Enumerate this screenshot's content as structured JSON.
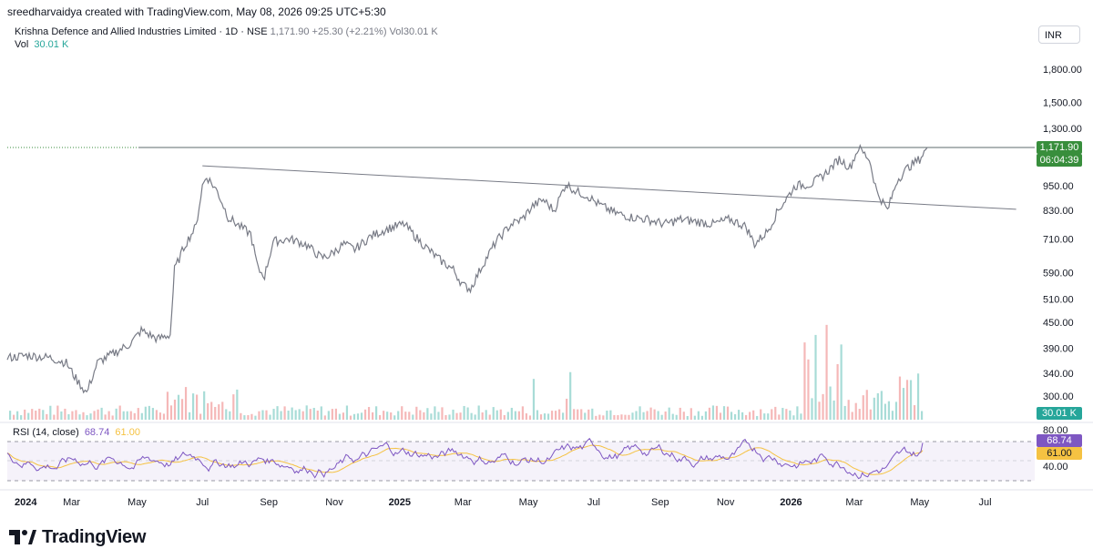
{
  "caption": "sreedharvaidya created with TradingView.com, May 08, 2026 09:25 UTC+5:30",
  "legend": {
    "symbol": "Krishna Defence and Allied Industries Limited · 1D · NSE",
    "last": "1,171.90",
    "change": "+25.30 (+2.21%)",
    "vol_inline": "Vol30.01 K",
    "vol_label": "Vol",
    "vol_value": "30.01 K"
  },
  "currency_button": "INR",
  "rsi_legend": {
    "label": "RSI (14, close)",
    "rsi": "68.74",
    "ma": "61.00"
  },
  "price_axis_labels": [
    "1,800.00",
    "1,500.00",
    "1,300.00",
    "950.00",
    "830.00",
    "710.00",
    "590.00",
    "510.00",
    "450.00",
    "390.00",
    "340.00",
    "300.00"
  ],
  "price_tag": {
    "price": "1,171.90",
    "countdown": "06:04:39"
  },
  "volume_tag": "30.01 K",
  "rsi_axis_labels": [
    "80.00",
    "40.00"
  ],
  "rsi_tags": {
    "rsi": "68.74",
    "ma": "61.00"
  },
  "time_axis_labels": [
    "2024",
    "Mar",
    "May",
    "Jul",
    "Sep",
    "Nov",
    "2025",
    "Mar",
    "May",
    "Jul",
    "Sep",
    "Nov",
    "2026",
    "Mar",
    "May",
    "Jul"
  ],
  "brand": "TradingView",
  "colors": {
    "price_line": "#787b86",
    "last_tag": "#388e3c",
    "rsi_line": "#7e57c2",
    "rsi_ma": "#f5c242",
    "vol_up": "#a8dcd7",
    "vol_down": "#f5b8b8",
    "vol_tag": "#26a69a"
  },
  "chart_data": [
    {
      "type": "line",
      "scale": "log",
      "title": "Krishna Defence and Allied Industries Limited · 1D · NSE",
      "x_range": [
        "2024-01-01",
        "2026-08-01"
      ],
      "ylim": [
        280,
        2000
      ],
      "series": [
        {
          "x": [
            "2024-01-01",
            "2024-01-20",
            "2024-02-10",
            "2024-02-25",
            "2024-03-05",
            "2024-03-15",
            "2024-03-25",
            "2024-04-10",
            "2024-04-25",
            "2024-05-05",
            "2024-05-20",
            "2024-06-01",
            "2024-06-05",
            "2024-06-15",
            "2024-06-25",
            "2024-07-01",
            "2024-07-05",
            "2024-07-15",
            "2024-07-25",
            "2024-08-05",
            "2024-08-15",
            "2024-08-22",
            "2024-08-28",
            "2024-09-05",
            "2024-09-20",
            "2024-10-05",
            "2024-10-20",
            "2024-10-28",
            "2024-11-10",
            "2024-11-20",
            "2024-12-05",
            "2024-12-20",
            "2025-01-05",
            "2025-01-20",
            "2025-02-05",
            "2025-02-20",
            "2025-03-01",
            "2025-03-08",
            "2025-03-20",
            "2025-04-01",
            "2025-04-15",
            "2025-04-25",
            "2025-05-05",
            "2025-05-15",
            "2025-05-25",
            "2025-06-05",
            "2025-06-15",
            "2025-06-25",
            "2025-07-05",
            "2025-07-20",
            "2025-08-05",
            "2025-08-20",
            "2025-09-05",
            "2025-09-20",
            "2025-10-05",
            "2025-10-20",
            "2025-11-05",
            "2025-11-20",
            "2025-11-28",
            "2025-12-10",
            "2025-12-20",
            "2026-01-05",
            "2026-01-20",
            "2026-02-01",
            "2026-02-15",
            "2026-02-25",
            "2026-03-05",
            "2026-03-15",
            "2026-03-22",
            "2026-04-01",
            "2026-04-10",
            "2026-04-20",
            "2026-05-01",
            "2026-05-08"
          ],
          "values": [
            370,
            375,
            370,
            360,
            330,
            305,
            360,
            380,
            400,
            430,
            410,
            420,
            600,
            690,
            760,
            950,
            1000,
            920,
            800,
            760,
            730,
            600,
            580,
            700,
            710,
            690,
            640,
            650,
            690,
            670,
            720,
            750,
            770,
            700,
            640,
            600,
            550,
            540,
            620,
            700,
            770,
            790,
            850,
            880,
            830,
            960,
            920,
            900,
            860,
            820,
            800,
            790,
            770,
            790,
            780,
            770,
            790,
            760,
            690,
            740,
            830,
            950,
            960,
            1010,
            1100,
            1050,
            1170,
            1100,
            920,
            830,
            980,
            1050,
            1100,
            1171.9
          ],
          "name": ""
        },
        {
          "name": "",
          "type": "trendline",
          "x": [
            "2024-07-01",
            "2026-07-30"
          ],
          "values": [
            1060,
            835
          ]
        },
        {
          "name": "",
          "type": "horizontal-line",
          "values": [
            1171.9
          ]
        }
      ]
    },
    {
      "type": "bar",
      "title": "",
      "last_value": "30.01 K",
      "bars": 250
    },
    {
      "type": "line",
      "title": "RSI (14, close)",
      "ylim": [
        0,
        100
      ],
      "bands": [
        70,
        30
      ],
      "series": [
        {
          "name": "",
          "last": 68.74
        },
        {
          "name": "",
          "last": 61.0
        }
      ]
    }
  ]
}
